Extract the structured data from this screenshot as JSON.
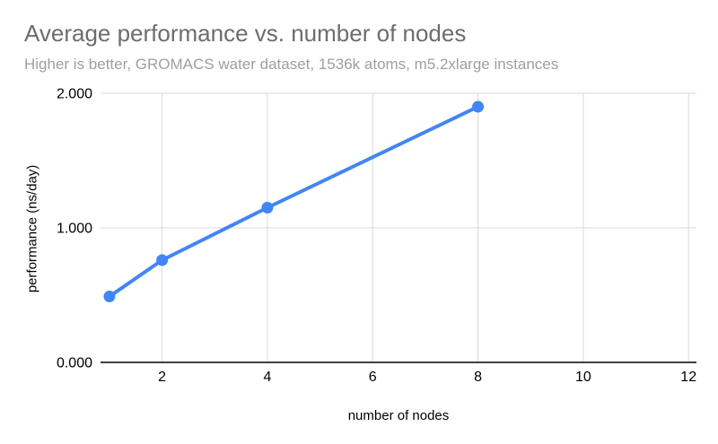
{
  "chart_data": {
    "type": "line",
    "title": "Average performance vs. number of nodes",
    "subtitle": "Higher is better, GROMACS water dataset, 1536k atoms, m5.2xlarge instances",
    "xlabel": "number of nodes",
    "ylabel": "performance (ns/day)",
    "series": [
      {
        "name": "performance",
        "x": [
          1,
          2,
          4,
          8
        ],
        "y": [
          0.49,
          0.76,
          1.15,
          1.9
        ]
      }
    ],
    "x_ticks": [
      2,
      4,
      6,
      8,
      10,
      12
    ],
    "y_ticks": [
      {
        "label": "0.000",
        "value": 0
      },
      {
        "label": "1.000",
        "value": 1
      },
      {
        "label": "2.000",
        "value": 2
      }
    ],
    "xlim": [
      0.83,
      12.15
    ],
    "ylim": [
      0,
      2
    ],
    "grid": true,
    "legend": "none",
    "colors": {
      "line": "#4285f4",
      "marker": "#4285f4",
      "gridline": "#d9d9d9",
      "axis_line": "#424242",
      "tick_label": "#000000",
      "axis_title": "#000000",
      "title": "#6d6d6d",
      "subtitle": "#9f9f9f",
      "background": "#ffffff"
    }
  }
}
